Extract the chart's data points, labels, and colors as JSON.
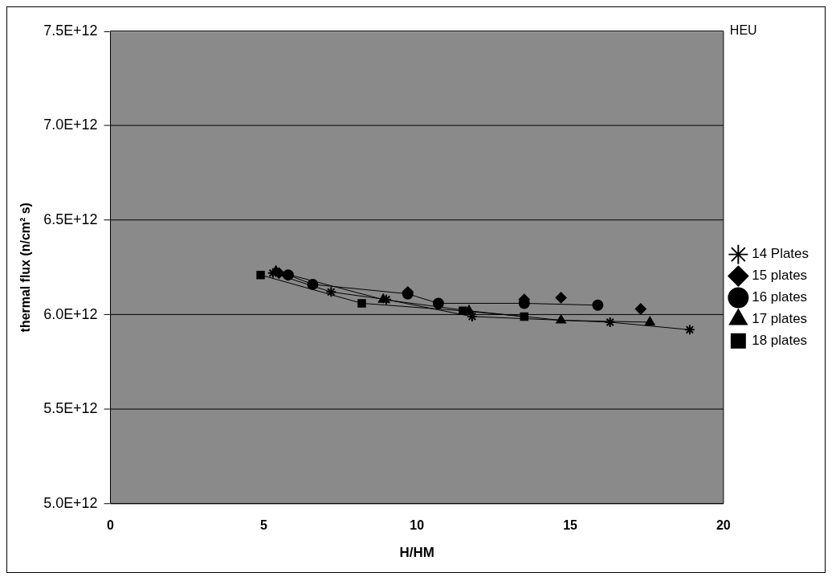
{
  "chart_data": {
    "type": "line",
    "xlabel": "H/HM",
    "ylabel": "thermal flux (n/cm² s)",
    "xlim": [
      0,
      20
    ],
    "xticks": [
      0,
      5,
      10,
      15,
      20
    ],
    "ylim": [
      5000000000000.0,
      7500000000000.0
    ],
    "yticks": [
      {
        "value": 5000000000000.0,
        "label": "5.0E+12"
      },
      {
        "value": 5500000000000.0,
        "label": "5.5E+12"
      },
      {
        "value": 6000000000000.0,
        "label": "6.0E+12"
      },
      {
        "value": 6500000000000.0,
        "label": "6.5E+12"
      },
      {
        "value": 7000000000000.0,
        "label": "7.0E+12"
      },
      {
        "value": 7500000000000.0,
        "label": "7.5E+12"
      }
    ],
    "grid": "y",
    "legend": "right",
    "ref_lines": [
      {
        "axis": "y",
        "value": 7500000000000.0,
        "label": "HEU",
        "color": "#b0b0b0"
      }
    ],
    "series": [
      {
        "name": "14 Plates",
        "color": "#000000",
        "marker": "cross",
        "x": [
          5.3,
          7.2,
          9.0,
          11.8,
          16.3,
          18.9
        ],
        "values": [
          6220000000000.0,
          6120000000000.0,
          6080000000000.0,
          5990000000000.0,
          5960000000000.0,
          5920000000000.0
        ]
      },
      {
        "name": "15 plates",
        "type": "scatter",
        "color": "#000000",
        "marker": "diamond",
        "x": [
          5.5,
          9.7,
          13.5,
          14.7,
          17.3
        ],
        "values": [
          6220000000000.0,
          6120000000000.0,
          6080000000000.0,
          6090000000000.0,
          6030000000000.0
        ]
      },
      {
        "name": "16 plates",
        "color": "#000000",
        "marker": "circle",
        "x": [
          5.8,
          6.6,
          9.7,
          10.7,
          13.5,
          15.9
        ],
        "values": [
          6210000000000.0,
          6160000000000.0,
          6110000000000.0,
          6060000000000.0,
          6060000000000.0,
          6050000000000.0
        ]
      },
      {
        "name": "17 plates",
        "color": "#000000",
        "marker": "triangle",
        "x": [
          5.4,
          8.9,
          11.7,
          14.7,
          17.6
        ],
        "values": [
          6230000000000.0,
          6080000000000.0,
          6020000000000.0,
          5970000000000.0,
          5960000000000.0
        ]
      },
      {
        "name": "18 plates",
        "color": "#000000",
        "marker": "square",
        "x": [
          4.9,
          8.2,
          11.5,
          13.5
        ],
        "values": [
          6210000000000.0,
          6060000000000.0,
          6020000000000.0,
          5990000000000.0
        ]
      }
    ]
  }
}
